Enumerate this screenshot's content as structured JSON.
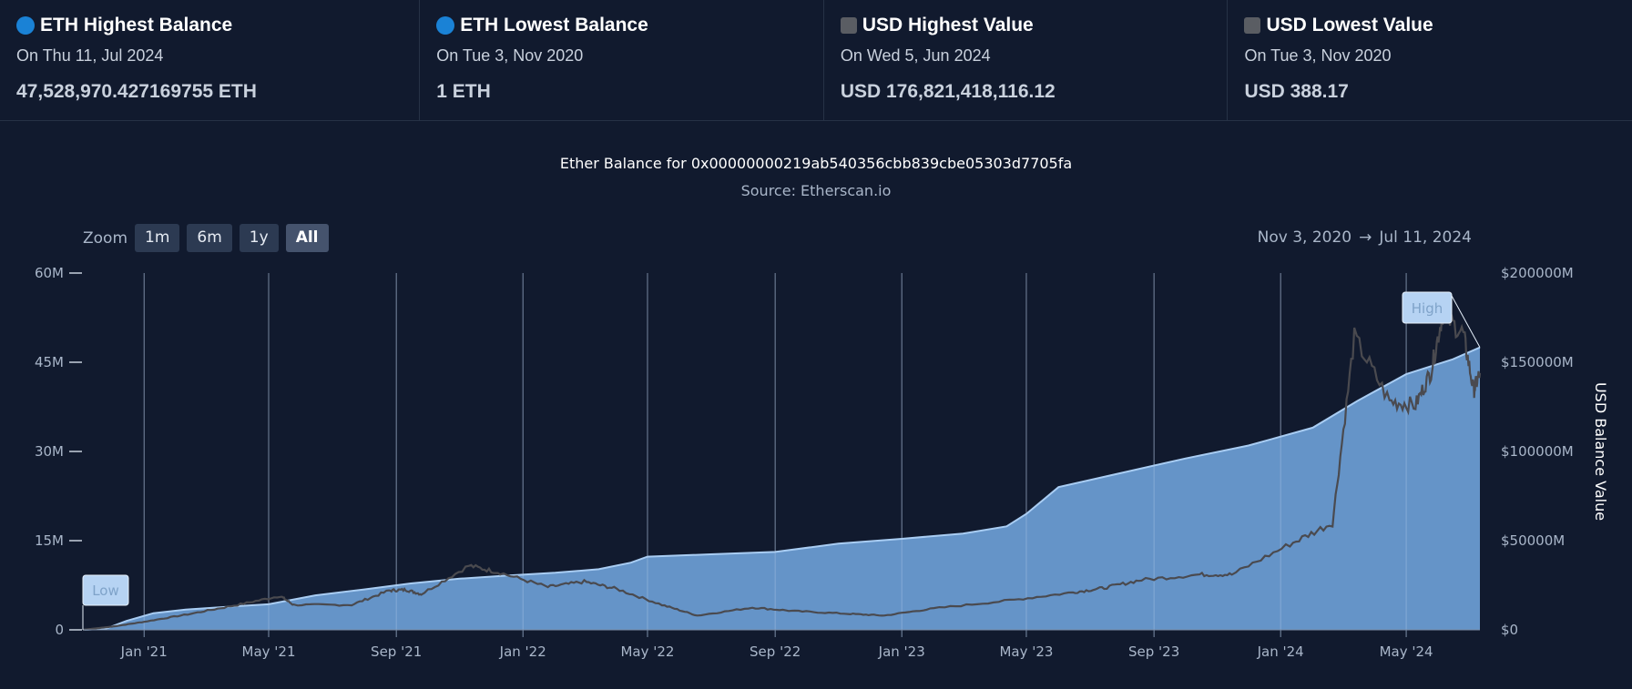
{
  "stats": [
    {
      "title": "ETH Highest Balance",
      "date": "On Thu 11, Jul 2024",
      "value": "47,528,970.427169755 ETH",
      "icon": "blue-dot-icon"
    },
    {
      "title": "ETH Lowest Balance",
      "date": "On Tue 3, Nov 2020",
      "value": "1 ETH",
      "icon": "blue-dot-icon"
    },
    {
      "title": "USD Highest Value",
      "date": "On Wed 5, Jun 2024",
      "value": "USD 176,821,418,116.12",
      "icon": "gray-square-icon"
    },
    {
      "title": "USD Lowest Value",
      "date": "On Tue 3, Nov 2020",
      "value": "USD 388.17",
      "icon": "gray-square-icon"
    }
  ],
  "zoom": {
    "label": "Zoom",
    "buttons": [
      "1m",
      "6m",
      "1y",
      "All"
    ],
    "active": "All"
  },
  "range": {
    "from": "Nov 3, 2020",
    "arrow": "→",
    "to": "Jul 11, 2024"
  },
  "colors": {
    "background": "#111a2e",
    "area": "#6a9bd1",
    "area_line": "#a9cdf3",
    "usd_line": "#4a4a4f",
    "grid": "#7d8fa8"
  },
  "chart_data": {
    "type": "area",
    "title": "Ether Balance for 0x00000000219ab540356cbb839cbe05303d7705fa",
    "subtitle": "Source: Etherscan.io",
    "x_ticks": [
      "Jan '21",
      "May '21",
      "Sep '21",
      "Jan '22",
      "May '22",
      "Sep '22",
      "Jan '23",
      "May '23",
      "Sep '23",
      "Jan '24",
      "May '24"
    ],
    "y_left": {
      "ticks": [
        "0",
        "15M",
        "30M",
        "45M",
        "60M"
      ],
      "range": [
        0,
        60000000
      ]
    },
    "y_right": {
      "label": "USD Balance Value",
      "ticks": [
        "$0",
        "$50000M",
        "$100000M",
        "$150000M",
        "$200000M"
      ],
      "range": [
        0,
        200000000000
      ]
    },
    "x_range": [
      "2020-11-03",
      "2024-07-11"
    ],
    "annotations": {
      "low": "Low",
      "high": "High"
    },
    "series": [
      {
        "axis": "left",
        "x": [
          "2020-11-03",
          "2020-11-25",
          "2020-12-15",
          "2021-01-10",
          "2021-02-10",
          "2021-03-15",
          "2021-05-01",
          "2021-06-15",
          "2021-08-01",
          "2021-09-15",
          "2021-11-01",
          "2021-12-15",
          "2022-02-01",
          "2022-03-15",
          "2022-04-15",
          "2022-05-01",
          "2022-07-01",
          "2022-09-01",
          "2022-11-01",
          "2023-01-01",
          "2023-03-01",
          "2023-04-12",
          "2023-05-01",
          "2023-06-01",
          "2023-08-01",
          "2023-10-01",
          "2023-12-01",
          "2024-02-01",
          "2024-03-15",
          "2024-05-01",
          "2024-06-15",
          "2024-07-11"
        ],
        "values": [
          0,
          200000,
          1500000,
          2800000,
          3400000,
          3800000,
          4300000,
          5800000,
          6800000,
          7800000,
          8600000,
          9100000,
          9600000,
          10200000,
          11300000,
          12300000,
          12700000,
          13100000,
          14500000,
          15300000,
          16200000,
          17400000,
          19500000,
          24000000,
          26400000,
          28800000,
          31000000,
          34000000,
          38500000,
          43000000,
          45500000,
          47500000
        ]
      },
      {
        "axis": "right",
        "x": [
          "2020-11-03",
          "2020-12-01",
          "2021-01-01",
          "2021-02-15",
          "2021-04-01",
          "2021-05-12",
          "2021-05-25",
          "2021-07-20",
          "2021-08-25",
          "2021-09-10",
          "2021-09-25",
          "2021-11-10",
          "2021-12-10",
          "2022-01-25",
          "2022-03-01",
          "2022-04-01",
          "2022-05-15",
          "2022-06-18",
          "2022-08-10",
          "2022-09-20",
          "2022-11-10",
          "2022-12-15",
          "2023-02-01",
          "2023-04-15",
          "2023-06-15",
          "2023-07-15",
          "2023-08-20",
          "2023-10-15",
          "2023-11-15",
          "2024-01-10",
          "2024-02-20",
          "2024-03-12",
          "2024-04-15",
          "2024-05-10",
          "2024-05-25",
          "2024-06-05",
          "2024-06-25",
          "2024-07-05",
          "2024-07-11"
        ],
        "values": [
          388,
          1800000000,
          4500000000,
          9000000000,
          14000000000,
          19000000000,
          14000000000,
          14000000000,
          22000000000,
          22500000000,
          20000000000,
          36000000000,
          32000000000,
          24000000000,
          27000000000,
          23000000000,
          14000000000,
          8000000000,
          12500000000,
          10500000000,
          9000000000,
          8000000000,
          12000000000,
          16500000000,
          21000000000,
          23500000000,
          28000000000,
          31000000000,
          31000000000,
          48000000000,
          60000000000,
          164000000000,
          128000000000,
          126000000000,
          145000000000,
          176821418116,
          166000000000,
          134000000000,
          144000000000
        ]
      }
    ]
  }
}
